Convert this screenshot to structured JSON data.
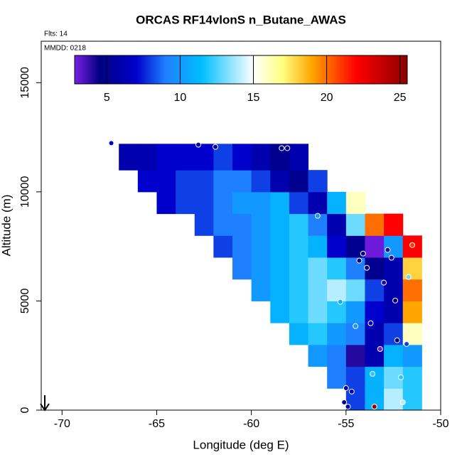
{
  "chart_data": {
    "type": "heatmap",
    "title": "ORCAS RF14vlonS n_Butane_AWAS",
    "annotations": [
      "Flts: 14",
      "MMDD: 0218"
    ],
    "xlabel": "Longitude (deg E)",
    "ylabel": "Altitude (m)",
    "xlim": [
      -71.1,
      -50
    ],
    "ylim": [
      0,
      16900
    ],
    "xticks": [
      -70,
      -65,
      -60,
      -55,
      -50
    ],
    "yticks": [
      0,
      5000,
      10000,
      15000
    ],
    "x_bins": [
      -68,
      -67,
      -66,
      -65,
      -64,
      -63,
      -62,
      -61,
      -60,
      -59,
      -58,
      -57,
      -56,
      -55,
      -54,
      -53,
      -52,
      -51
    ],
    "y_bins": [
      0,
      1000,
      2000,
      3000,
      4000,
      5000,
      6000,
      7000,
      8000,
      9000,
      10000,
      11000,
      12200
    ],
    "z": [
      [
        null,
        null,
        null,
        null,
        null,
        null,
        null,
        null,
        null,
        null,
        null,
        null,
        null,
        8,
        11,
        14,
        12
      ],
      [
        null,
        null,
        null,
        null,
        null,
        null,
        null,
        null,
        null,
        null,
        null,
        null,
        9,
        8,
        11,
        13,
        12
      ],
      [
        null,
        null,
        null,
        null,
        null,
        null,
        null,
        null,
        null,
        null,
        null,
        10,
        9,
        4,
        6,
        11,
        10
      ],
      [
        null,
        null,
        null,
        null,
        null,
        null,
        null,
        null,
        null,
        null,
        11,
        12,
        10,
        9,
        6,
        8,
        16
      ],
      [
        null,
        null,
        null,
        null,
        null,
        null,
        null,
        null,
        null,
        11,
        12,
        13,
        12,
        10,
        7,
        6,
        19
      ],
      [
        null,
        null,
        null,
        null,
        null,
        null,
        null,
        null,
        10,
        11,
        12,
        13,
        14,
        13,
        8,
        6,
        20
      ],
      [
        null,
        null,
        null,
        null,
        null,
        null,
        null,
        9,
        10,
        11,
        12,
        13,
        12,
        9,
        5,
        6,
        18
      ],
      [
        null,
        null,
        null,
        null,
        null,
        null,
        8,
        9,
        10,
        11,
        12,
        11,
        7,
        5,
        3,
        10,
        22
      ],
      [
        null,
        null,
        null,
        null,
        null,
        8,
        9,
        9,
        10,
        11,
        12,
        9,
        6,
        13,
        20,
        22,
        null
      ],
      [
        null,
        null,
        null,
        7,
        8,
        8,
        9,
        10,
        10,
        11,
        8,
        6,
        11,
        16,
        null,
        null,
        null
      ],
      [
        null,
        null,
        7,
        7,
        8,
        8,
        9,
        9,
        8,
        6,
        5,
        8,
        null,
        null,
        null,
        null,
        null
      ],
      [
        null,
        6,
        6,
        7,
        7,
        7,
        8,
        7,
        6,
        5,
        6,
        null,
        null,
        null,
        null,
        null,
        null
      ]
    ],
    "points": {
      "x": [
        -67.4,
        -62.8,
        -61.9,
        -58.4,
        -58.1,
        -56.5,
        -54.1,
        -54.3,
        -52.8,
        -52.6,
        -51.5,
        -53.9,
        -51.7,
        -53.0,
        -55.3,
        -52.4,
        -53.7,
        -54.5,
        -52.3,
        -51.8,
        -53.2,
        -53.6,
        -55.0,
        -54.7,
        -52.1,
        -55.1,
        -52.0,
        -54.9,
        -53.5
      ],
      "y": [
        12230,
        12160,
        12060,
        12000,
        12000,
        8900,
        7170,
        6850,
        7340,
        6980,
        7560,
        6520,
        6100,
        5840,
        4960,
        5020,
        3980,
        3850,
        3200,
        3030,
        2800,
        1660,
        1010,
        850,
        1500,
        360,
        360,
        160,
        160
      ],
      "values": [
        7,
        6,
        6,
        5,
        5,
        10,
        5,
        5,
        4,
        4,
        21,
        5,
        13,
        4,
        11,
        5,
        7,
        10,
        5,
        8,
        3,
        12,
        6,
        7,
        12,
        5,
        14,
        6,
        25
      ]
    },
    "colorbar": {
      "lim": [
        2.8,
        25.5
      ],
      "ticks": [
        5,
        10,
        15,
        20,
        25
      ],
      "colormap": [
        {
          "value": 2.8,
          "color": "#7a1fe6"
        },
        {
          "value": 4.5,
          "color": "#000080"
        },
        {
          "value": 7,
          "color": "#0000cd"
        },
        {
          "value": 9,
          "color": "#1e7fff"
        },
        {
          "value": 11.5,
          "color": "#00bfff"
        },
        {
          "value": 15,
          "color": "#ffffff"
        },
        {
          "value": 17,
          "color": "#ffff80"
        },
        {
          "value": 19,
          "color": "#ffa500"
        },
        {
          "value": 22,
          "color": "#ff0000"
        },
        {
          "value": 25.5,
          "color": "#8b0000"
        }
      ]
    }
  }
}
